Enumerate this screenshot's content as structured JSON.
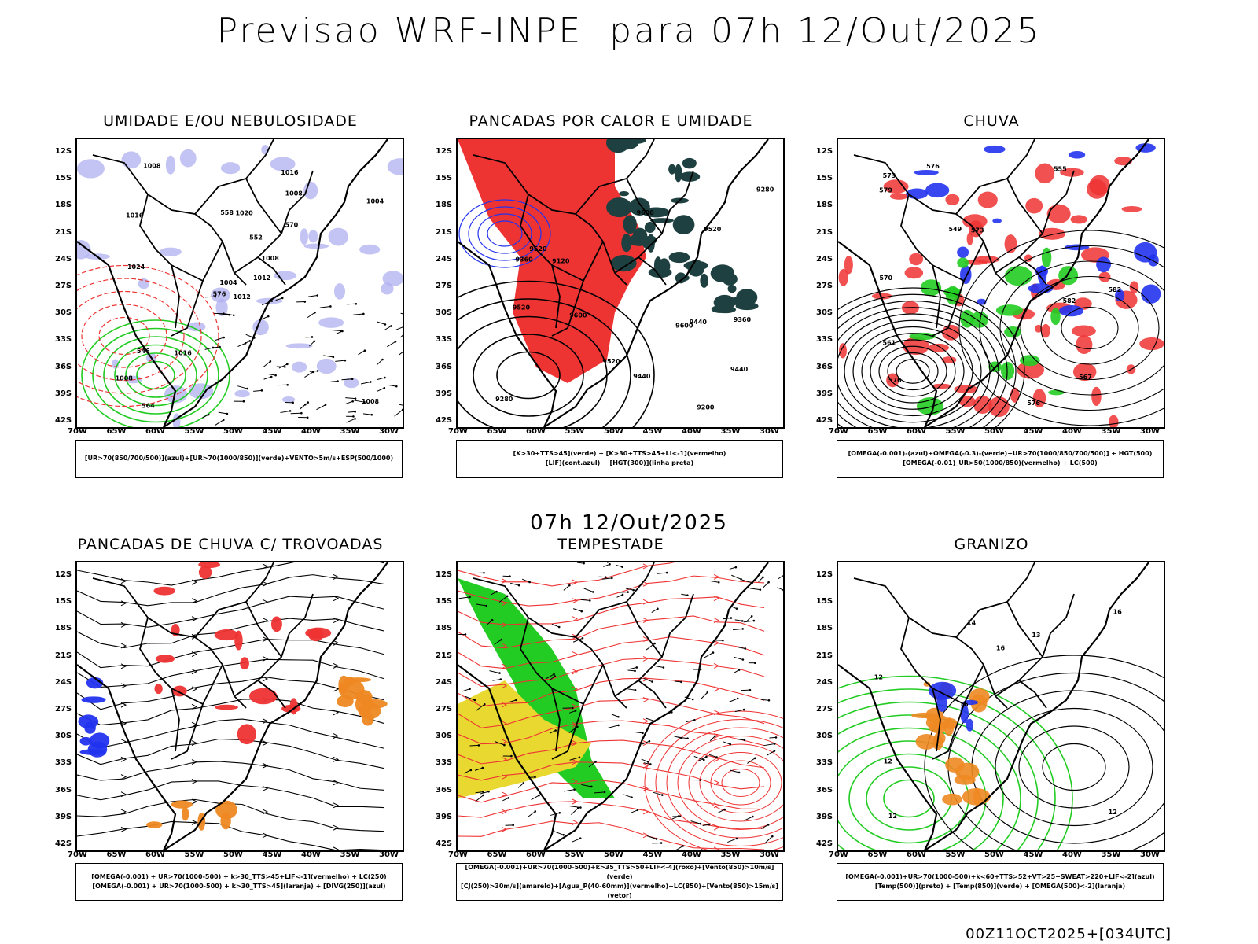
{
  "header": {
    "title": "Previsao WRF-INPE  para 07h 12/Out/2025",
    "subtitle": "07h 12/Out/2025",
    "footer": "00Z11OCT2025+[034UTC]"
  },
  "axes": {
    "lat_labels": [
      "12S",
      "15S",
      "18S",
      "21S",
      "24S",
      "27S",
      "30S",
      "33S",
      "36S",
      "39S",
      "42S"
    ],
    "lon_labels": [
      "70W",
      "65W",
      "60W",
      "55W",
      "50W",
      "45W",
      "40W",
      "35W",
      "30W"
    ]
  },
  "colors": {
    "blue": "#2233ee",
    "green": "#22cc22",
    "red": "#ee3333",
    "orange": "#ee8822",
    "yellow": "#e8d830",
    "darkteal": "#1f4040",
    "lavender": "#b0b0f0"
  },
  "panels": [
    {
      "id": "umidade",
      "title": "UMIDADE E/OU NEBULOSIDADE",
      "legend": [
        "[UR>70(850/700/500)](azul)+[UR>70(1000/850)](verde)+VENTO>5m/s+ESP(500/1000)"
      ],
      "contour_labels": [
        "1012",
        "1016",
        "1004",
        "1008",
        "1008",
        "1016",
        "1016",
        "1020",
        "1008",
        "1012",
        "1008",
        "1008",
        "1024",
        "1004",
        "576",
        "570",
        "564",
        "558",
        "552",
        "546"
      ]
    },
    {
      "id": "pancadas_calor",
      "title": "PANCADAS POR CALOR E UMIDADE",
      "legend": [
        "[K>30+TTS>45](verde) + [K>30+TTS>45+LI<-1](vermelho)",
        "[LIF](cont.azul) + [HGT(300)](linha preta)"
      ],
      "contour_labels": [
        "9600",
        "9600",
        "9600",
        "9520",
        "9520",
        "9520",
        "9520",
        "9440",
        "9440",
        "9360",
        "9360",
        "9280",
        "9200",
        "9120",
        "9280",
        "9440"
      ]
    },
    {
      "id": "chuva",
      "title": "CHUVA",
      "legend": [
        "[OMEGA(-0.001)-(azul)+OMEGA(-0.3)-(verde)+UR>70(1000/850/700/500)] + HGT(500)",
        "[OMEGA(-0.01)_UR>50(1000/850)(vermelho) + LC(500)"
      ],
      "contour_labels": [
        "582",
        "582",
        "576",
        "576",
        "573",
        "567",
        "561",
        "555",
        "549",
        "576",
        "579",
        "570",
        "573"
      ]
    },
    {
      "id": "pancadas_trovoadas",
      "title": "PANCADAS DE CHUVA C/ TROVOADAS",
      "legend": [
        "[OMEGA(-0.001) + UR>70(1000-500) + k>30_TTS>45+LIF<-1](vermelho) + LC(250)",
        "[OMEGA(-0.001) + UR>70(1000-500) + k>30_TTS>45](laranja) + [DIVG(250)](azul)"
      ],
      "contour_labels": []
    },
    {
      "id": "tempestade",
      "title": "TEMPESTADE",
      "legend": [
        "[OMEGA(-0.001)+UR>70(1000-500)+k>35_TTS>50+LIF<-4](roxo)+[Vento(850)>10m/s](verde)",
        "[CJ(250)>30m/s](amarelo)+[Agua_P(40-60mm)](vermelho)+LC(850)+[Vento(850)>15m/s](vetor)"
      ],
      "contour_labels": []
    },
    {
      "id": "granizo",
      "title": "GRANIZO",
      "legend": [
        "[OMEGA(-0.001)+UR>70(1000-500)+k<60+TTS>52+VT>25+SWEAT>220+LIF<-2](azul)",
        "[Temp(500)](preto) + [Temp(850)](verde) + [OMEGA(500)<-2](laranja)"
      ],
      "contour_labels": [
        "12",
        "12",
        "16",
        "16",
        "13",
        "12",
        "14",
        "16",
        "12"
      ]
    }
  ]
}
